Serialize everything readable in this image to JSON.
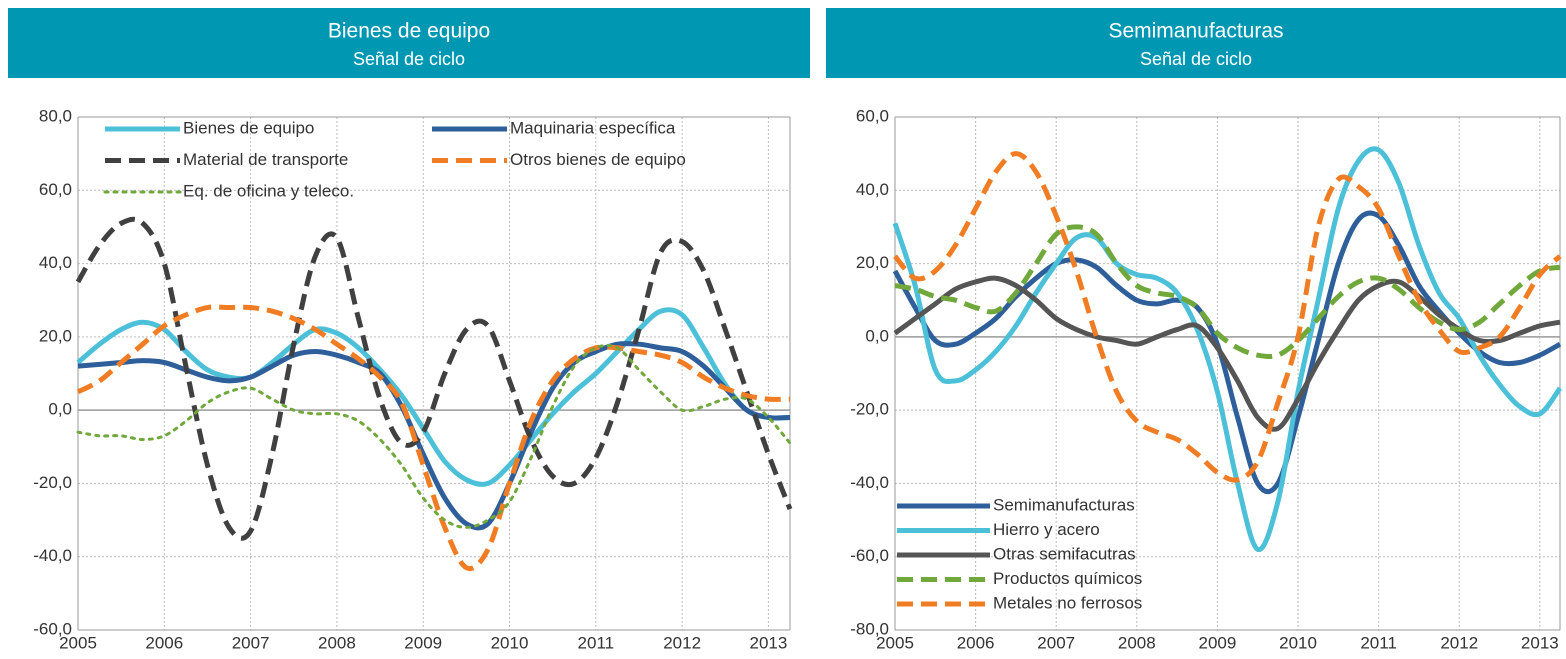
{
  "chart_data": [
    {
      "type": "line",
      "title": "Bienes de equipo",
      "subtitle": "Señal de ciclo",
      "x": [
        2005,
        2005.25,
        2005.5,
        2005.75,
        2006,
        2006.25,
        2006.5,
        2006.75,
        2007,
        2007.25,
        2007.5,
        2007.75,
        2008,
        2008.25,
        2008.5,
        2008.75,
        2009,
        2009.25,
        2009.5,
        2009.75,
        2010,
        2010.25,
        2010.5,
        2010.75,
        2011,
        2011.25,
        2011.5,
        2011.75,
        2012,
        2012.25,
        2012.5,
        2012.75,
        2013,
        2013.25
      ],
      "xlim": [
        2005,
        2013.25
      ],
      "xticks": [
        2005,
        2006,
        2007,
        2008,
        2009,
        2010,
        2011,
        2012,
        2013
      ],
      "ylim": [
        -60,
        80
      ],
      "yticks": [
        {
          "value": -60,
          "label": "-60,0"
        },
        {
          "value": -40,
          "label": "-40,0"
        },
        {
          "value": -20,
          "label": "-20,0"
        },
        {
          "value": 0,
          "label": "0,0"
        },
        {
          "value": 20,
          "label": "20,0"
        },
        {
          "value": 40,
          "label": "40,0"
        },
        {
          "value": 60,
          "label": "60,0"
        },
        {
          "value": 80,
          "label": "80,0"
        }
      ],
      "grid": true,
      "legend": "upper left",
      "series": [
        {
          "name": "Bienes de equipo",
          "color": "#4bc0d8",
          "style": "solid",
          "values": [
            13,
            18,
            22,
            24,
            22,
            16,
            11,
            9,
            9,
            13,
            18,
            22,
            21,
            17,
            11,
            4,
            -5,
            -14,
            -19,
            -20,
            -15,
            -8,
            -1,
            5,
            10,
            16,
            22,
            27,
            26,
            17,
            7,
            0,
            -2,
            -2
          ]
        },
        {
          "name": "Maquinaria específica",
          "color": "#2e5f9a",
          "style": "solid",
          "values": [
            12,
            12.5,
            13,
            13.5,
            13,
            11,
            9,
            8,
            9,
            12,
            15,
            16,
            15,
            13,
            10,
            1,
            -12,
            -24,
            -31,
            -31,
            -20,
            -6,
            6,
            13,
            16,
            18,
            18,
            17,
            16,
            12,
            6,
            0,
            -2,
            -2
          ]
        },
        {
          "name": "Material de transporte",
          "color": "#404040",
          "style": "dashed",
          "values": [
            35,
            45,
            51,
            51,
            40,
            12,
            -15,
            -32,
            -33,
            -12,
            18,
            42,
            47,
            25,
            3,
            -9,
            -6,
            10,
            22,
            23,
            8,
            -8,
            -18,
            -20,
            -13,
            2,
            22,
            43,
            46,
            38,
            22,
            5,
            -12,
            -27
          ]
        },
        {
          "name": "Otros bienes de equipo",
          "color": "#f07d23",
          "style": "dashed",
          "values": [
            5,
            8,
            13,
            18,
            23,
            26,
            28,
            28,
            28,
            27,
            25,
            22,
            18,
            14,
            9,
            2,
            -15,
            -32,
            -43,
            -38,
            -20,
            -3,
            8,
            14,
            17,
            17,
            16,
            15,
            13,
            9,
            6,
            4,
            3,
            3
          ]
        },
        {
          "name": "Eq. de oficina y teleco.",
          "color": "#70a83b",
          "style": "dotted",
          "values": [
            -6,
            -7,
            -7,
            -8,
            -7,
            -3,
            2,
            5,
            6,
            3,
            0,
            -1,
            -1,
            -3,
            -8,
            -15,
            -24,
            -30,
            -32,
            -30,
            -25,
            -13,
            1,
            12,
            17,
            17,
            11,
            5,
            0,
            1,
            3,
            3,
            -2,
            -9
          ]
        }
      ]
    },
    {
      "type": "line",
      "title": "Semimanufacturas",
      "subtitle": "Señal de ciclo",
      "x": [
        2005,
        2005.25,
        2005.5,
        2005.75,
        2006,
        2006.25,
        2006.5,
        2006.75,
        2007,
        2007.25,
        2007.5,
        2007.75,
        2008,
        2008.25,
        2008.5,
        2008.75,
        2009,
        2009.25,
        2009.5,
        2009.75,
        2010,
        2010.25,
        2010.5,
        2010.75,
        2011,
        2011.25,
        2011.5,
        2011.75,
        2012,
        2012.25,
        2012.5,
        2012.75,
        2013,
        2013.25
      ],
      "xlim": [
        2005,
        2013.25
      ],
      "xticks": [
        2005,
        2006,
        2007,
        2008,
        2009,
        2010,
        2011,
        2012,
        2013
      ],
      "ylim": [
        -80,
        60
      ],
      "yticks": [
        {
          "value": -80,
          "label": "-80,0"
        },
        {
          "value": -60,
          "label": "-60,0"
        },
        {
          "value": -40,
          "label": "-40,0"
        },
        {
          "value": -20,
          "label": "-20,0"
        },
        {
          "value": 0,
          "label": "0,0"
        },
        {
          "value": 20,
          "label": "20,0"
        },
        {
          "value": 40,
          "label": "40,0"
        },
        {
          "value": 60,
          "label": "60,0"
        }
      ],
      "grid": true,
      "legend": "lower left",
      "series": [
        {
          "name": "Semimanufacturas",
          "color": "#2e5f9a",
          "style": "solid",
          "values": [
            18,
            8,
            -1,
            -2,
            1,
            5,
            11,
            16,
            20,
            21,
            19,
            14,
            10,
            9,
            10,
            8,
            -2,
            -22,
            -40,
            -40,
            -22,
            -1,
            20,
            32,
            33,
            25,
            14,
            7,
            1,
            -4,
            -7,
            -7,
            -5,
            -2
          ]
        },
        {
          "name": "Hierro y acero",
          "color": "#4bc0d8",
          "style": "solid",
          "values": [
            31,
            14,
            -9,
            -12,
            -9,
            -4,
            3,
            12,
            20,
            27,
            27,
            20,
            17,
            16,
            12,
            2,
            -15,
            -40,
            -58,
            -45,
            -15,
            10,
            35,
            48,
            51,
            42,
            25,
            12,
            5,
            -5,
            -13,
            -19,
            -21,
            -14
          ]
        },
        {
          "name": "Otras semifacutras",
          "color": "#555555",
          "style": "solid",
          "values": [
            1,
            5,
            9,
            13,
            15,
            16,
            14,
            10,
            5,
            2,
            0,
            -1,
            -2,
            0,
            2,
            3,
            -3,
            -12,
            -22,
            -25,
            -17,
            -7,
            2,
            10,
            14,
            15,
            11,
            6,
            2,
            -1,
            -1,
            1,
            3,
            4
          ]
        },
        {
          "name": "Productos químicos",
          "color": "#70a83b",
          "style": "dashed",
          "values": [
            14,
            13,
            11,
            10,
            8,
            7,
            12,
            20,
            28,
            30,
            28,
            20,
            14,
            12,
            11,
            8,
            1,
            -3,
            -5,
            -5,
            -1,
            5,
            11,
            15,
            16,
            13,
            8,
            4,
            2,
            4,
            9,
            14,
            18,
            19
          ]
        },
        {
          "name": "Metales no ferrosos",
          "color": "#f07d23",
          "style": "dashed",
          "values": [
            22,
            16,
            18,
            25,
            35,
            45,
            50,
            45,
            33,
            18,
            0,
            -15,
            -23,
            -26,
            -28,
            -32,
            -37,
            -39,
            -34,
            -18,
            0,
            30,
            43,
            41,
            35,
            22,
            10,
            2,
            -4,
            -3,
            0,
            8,
            17,
            22
          ]
        }
      ]
    }
  ]
}
